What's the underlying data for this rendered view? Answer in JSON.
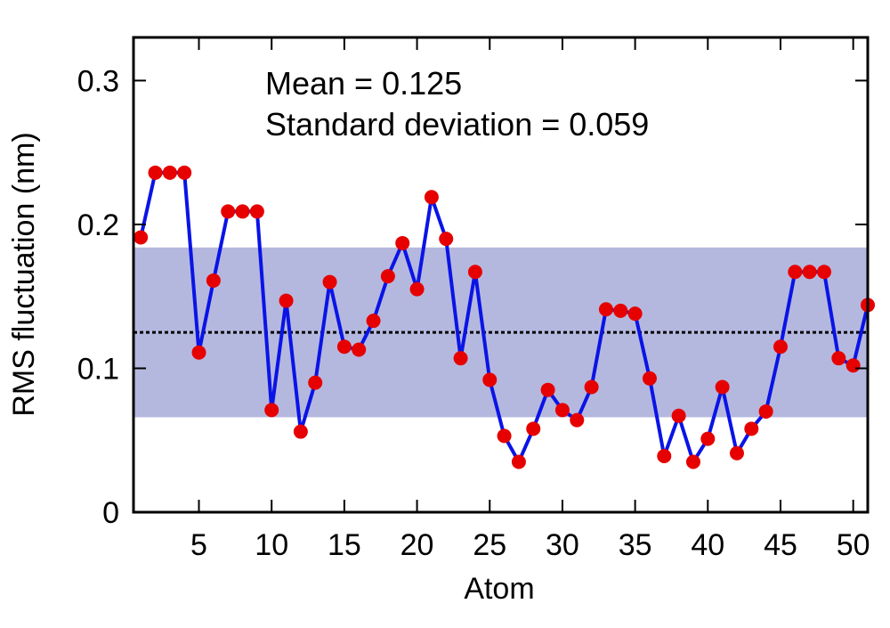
{
  "chart_data": {
    "type": "line",
    "xlabel": "Atom",
    "ylabel": "RMS fluctuation (nm)",
    "xlim": [
      0.5,
      51
    ],
    "ylim": [
      0,
      0.33
    ],
    "x_ticks": [
      5,
      10,
      15,
      20,
      25,
      30,
      35,
      40,
      45,
      50
    ],
    "x_tick_labels": [
      "5",
      "10",
      "15",
      "20",
      "25",
      "30",
      "35",
      "40",
      "45",
      "50"
    ],
    "y_ticks": [
      0,
      0.1,
      0.2,
      0.3
    ],
    "y_tick_labels": [
      "0",
      "0.1",
      "0.2",
      "0.3"
    ],
    "grid": false,
    "legend": "none",
    "annotations": {
      "mean": "Mean = 0.125",
      "std": "Standard deviation = 0.059"
    },
    "mean_line": 0.125,
    "std_band": [
      0.066,
      0.184
    ],
    "colors": {
      "line": "#0a14e6",
      "points": "#e60000",
      "band": "#b5b8de",
      "mean_line": "#000000"
    },
    "x": [
      1,
      2,
      3,
      4,
      5,
      6,
      7,
      8,
      9,
      10,
      11,
      12,
      13,
      14,
      15,
      16,
      17,
      18,
      19,
      20,
      21,
      22,
      23,
      24,
      25,
      26,
      27,
      28,
      29,
      30,
      31,
      32,
      33,
      34,
      35,
      36,
      37,
      38,
      39,
      40,
      41,
      42,
      43,
      44,
      45,
      46,
      47,
      48,
      49,
      50,
      51
    ],
    "values": [
      0.191,
      0.236,
      0.236,
      0.236,
      0.111,
      0.161,
      0.209,
      0.209,
      0.209,
      0.071,
      0.147,
      0.056,
      0.09,
      0.16,
      0.115,
      0.113,
      0.133,
      0.164,
      0.187,
      0.155,
      0.219,
      0.19,
      0.107,
      0.167,
      0.092,
      0.053,
      0.035,
      0.058,
      0.085,
      0.071,
      0.064,
      0.087,
      0.141,
      0.14,
      0.138,
      0.093,
      0.039,
      0.067,
      0.035,
      0.051,
      0.087,
      0.041,
      0.058,
      0.07,
      0.115,
      0.167,
      0.167,
      0.167,
      0.107,
      0.102,
      0.144
    ]
  }
}
